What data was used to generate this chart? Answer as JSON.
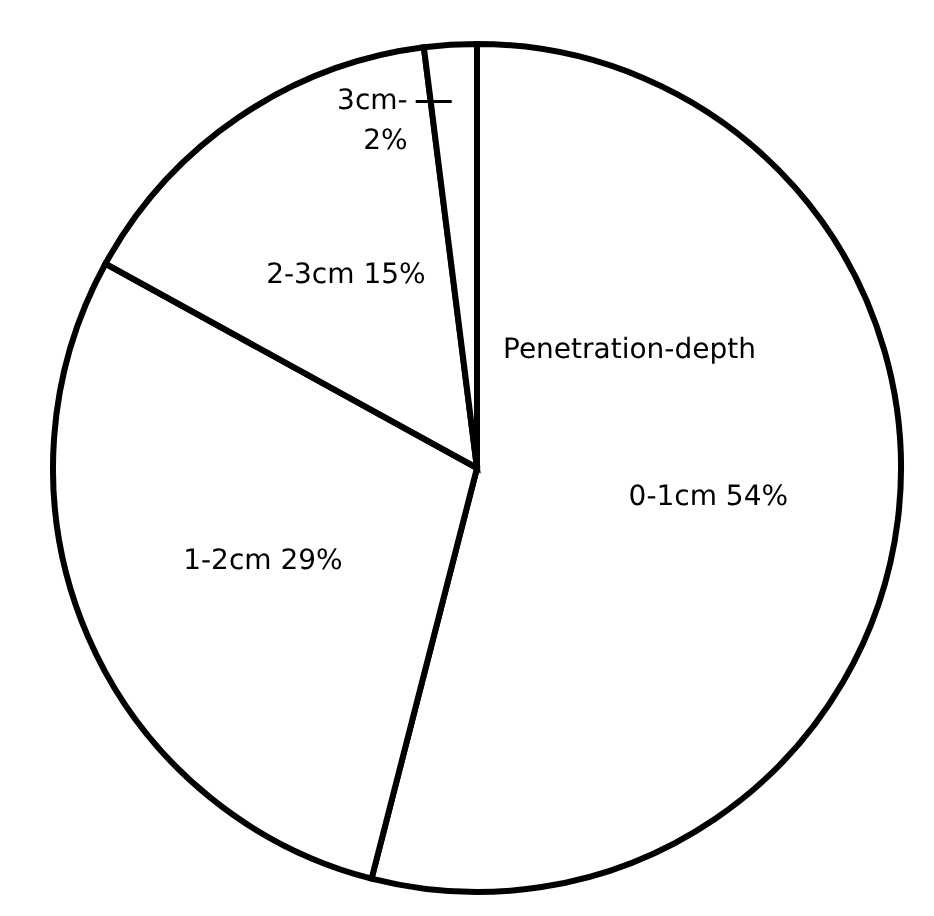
{
  "chart_data": {
    "type": "pie",
    "categories": [
      "0-1cm",
      "1-2cm",
      "2-3cm",
      "3cm-"
    ],
    "values": [
      54,
      29,
      15,
      2
    ],
    "value_labels": [
      "54%",
      "29%",
      "15%",
      "2%"
    ],
    "colors": [
      "#ffffff",
      "#ffffff",
      "#ffffff",
      "#ffffff"
    ],
    "annotations": [
      "Penetration-depth"
    ],
    "legend": false
  }
}
